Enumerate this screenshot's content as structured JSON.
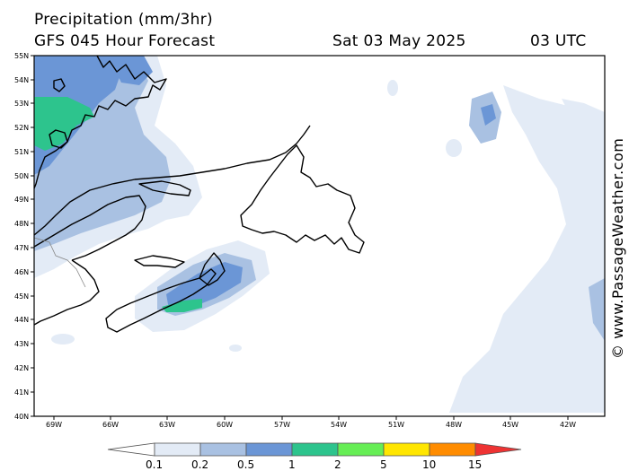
{
  "header": {
    "title": "Precipitation (mm/3hr)",
    "model": "GFS 045 Hour Forecast",
    "date": "Sat 03 May 2025",
    "time": "03 UTC"
  },
  "credit": "© www.PassageWeather.com",
  "map": {
    "lat_labels": [
      "55N",
      "54N",
      "53N",
      "52N",
      "51N",
      "50N",
      "49N",
      "48N",
      "47N",
      "46N",
      "45N",
      "44N",
      "43N",
      "42N",
      "41N",
      "40N"
    ],
    "lon_labels": [
      "69W",
      "66W",
      "63W",
      "60W",
      "57W",
      "54W",
      "51W",
      "48W",
      "45W",
      "42W"
    ]
  },
  "legend": {
    "labels": [
      "0.1",
      "0.2",
      "0.5",
      "1",
      "2",
      "5",
      "10",
      "15"
    ],
    "colors": [
      "#ffffff",
      "#e3ebf6",
      "#a9c1e2",
      "#6b96d6",
      "#2dc48d",
      "#66ee55",
      "#ffe600",
      "#ff8c00",
      "#ee3333"
    ]
  }
}
